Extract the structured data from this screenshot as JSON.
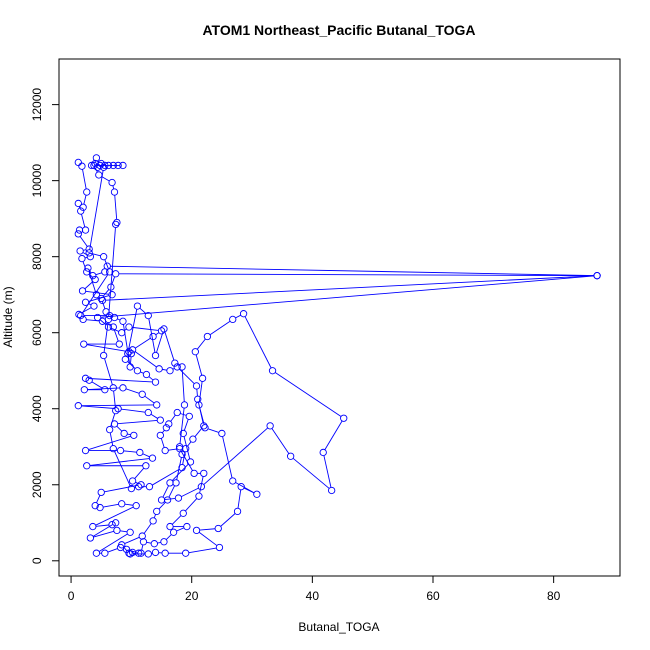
{
  "chart_data": {
    "type": "line",
    "title": "ATOM1 Northeast_Pacific Butanal_TOGA",
    "xlabel": "Butanal_TOGA",
    "ylabel": "Altitude (m)",
    "xlim": [
      -2,
      91
    ],
    "ylim": [
      -400,
      13200
    ],
    "xticks": [
      0,
      20,
      40,
      60,
      80
    ],
    "yticks": [
      0,
      2000,
      4000,
      6000,
      8000,
      10000,
      12000
    ],
    "grid": false,
    "line_color": "#0000ff",
    "marker": "open-circle",
    "series": [
      {
        "points": [
          [
            1.2,
            10480
          ],
          [
            1.8,
            10380
          ],
          [
            2.6,
            9700
          ],
          [
            2.0,
            9300
          ],
          [
            1.2,
            9400
          ],
          [
            1.6,
            9200
          ],
          [
            2.4,
            8700
          ],
          [
            1.4,
            8700
          ],
          [
            1.2,
            8600
          ],
          [
            3.0,
            8200
          ],
          [
            1.5,
            8150
          ],
          [
            3.2,
            8000
          ],
          [
            1.8,
            7950
          ],
          [
            2.6,
            7600
          ],
          [
            4.0,
            7400
          ],
          [
            1.9,
            7100
          ],
          [
            6.8,
            7000
          ],
          [
            2.4,
            6800
          ],
          [
            3.8,
            6700
          ],
          [
            1.3,
            6480
          ],
          [
            2.0,
            6350
          ],
          [
            5.2,
            6300
          ],
          [
            7.0,
            6150
          ],
          [
            8.0,
            5700
          ],
          [
            2.1,
            5700
          ],
          [
            9.6,
            5500
          ],
          [
            9.0,
            5300
          ],
          [
            11.0,
            5000
          ],
          [
            12.5,
            4900
          ],
          [
            14.0,
            4700
          ],
          [
            2.4,
            4800
          ],
          [
            3.0,
            4750
          ],
          [
            5.6,
            4500
          ],
          [
            2.2,
            4500
          ],
          [
            8.6,
            4550
          ],
          [
            11.8,
            4380
          ],
          [
            14.2,
            4100
          ],
          [
            1.2,
            4080
          ],
          [
            7.8,
            4000
          ],
          [
            12.8,
            3900
          ],
          [
            14.8,
            3700
          ],
          [
            7.2,
            3600
          ],
          [
            8.8,
            3350
          ],
          [
            10.4,
            3300
          ],
          [
            2.4,
            2900
          ],
          [
            8.2,
            2900
          ],
          [
            11.4,
            2850
          ],
          [
            13.5,
            2700
          ],
          [
            2.6,
            2500
          ],
          [
            12.4,
            2500
          ],
          [
            10.2,
            2100
          ],
          [
            11.6,
            2000
          ],
          [
            5.0,
            1800
          ],
          [
            4.0,
            1450
          ],
          [
            4.8,
            1400
          ],
          [
            8.4,
            1500
          ],
          [
            10.8,
            1450
          ],
          [
            3.6,
            900
          ],
          [
            6.8,
            950
          ],
          [
            7.4,
            1000
          ],
          [
            3.2,
            600
          ],
          [
            7.6,
            800
          ],
          [
            9.8,
            750
          ],
          [
            4.2,
            200
          ],
          [
            5.6,
            200
          ],
          [
            8.2,
            350
          ],
          [
            9.2,
            300
          ],
          [
            11.2,
            200
          ],
          [
            9.8,
            180
          ],
          [
            12.8,
            180
          ],
          [
            14.0,
            220
          ],
          [
            15.6,
            200
          ],
          [
            19.0,
            200
          ],
          [
            24.6,
            350
          ],
          [
            20.8,
            800
          ],
          [
            24.4,
            850
          ],
          [
            27.6,
            1300
          ],
          [
            28.2,
            1950
          ],
          [
            30.8,
            1750
          ],
          [
            26.8,
            2100
          ],
          [
            25.0,
            3350
          ],
          [
            22.2,
            3500
          ],
          [
            21.2,
            4100
          ],
          [
            21.8,
            4800
          ],
          [
            20.6,
            5500
          ],
          [
            22.6,
            5900
          ],
          [
            26.8,
            6350
          ],
          [
            28.6,
            6500
          ],
          [
            33.4,
            5000
          ],
          [
            45.2,
            3750
          ],
          [
            41.8,
            2850
          ],
          [
            43.2,
            1850
          ],
          [
            36.4,
            2750
          ],
          [
            33.0,
            3550
          ],
          [
            21.6,
            1950
          ],
          [
            17.8,
            1650
          ],
          [
            15.0,
            1600
          ],
          [
            16.4,
            2050
          ],
          [
            19.8,
            2600
          ],
          [
            18.6,
            3350
          ],
          [
            19.6,
            3800
          ],
          [
            17.6,
            3900
          ],
          [
            16.2,
            3600
          ],
          [
            15.8,
            3500
          ],
          [
            14.8,
            3300
          ],
          [
            15.6,
            2900
          ],
          [
            18.0,
            2950
          ],
          [
            20.4,
            2300
          ],
          [
            22.0,
            2300
          ],
          [
            21.2,
            1700
          ],
          [
            18.6,
            1250
          ],
          [
            16.4,
            900
          ],
          [
            19.2,
            900
          ],
          [
            17.0,
            750
          ],
          [
            15.4,
            500
          ],
          [
            13.8,
            450
          ],
          [
            12.0,
            500
          ],
          [
            11.6,
            200
          ],
          [
            10.2,
            220
          ],
          [
            9.6,
            200
          ],
          [
            8.4,
            420
          ],
          [
            11.8,
            650
          ],
          [
            13.6,
            1050
          ],
          [
            14.2,
            1300
          ],
          [
            16.0,
            1600
          ],
          [
            17.4,
            2050
          ],
          [
            18.4,
            2800
          ],
          [
            18.0,
            3000
          ],
          [
            18.8,
            4100
          ],
          [
            18.4,
            5100
          ],
          [
            17.2,
            5200
          ],
          [
            15.4,
            6100
          ],
          [
            14.0,
            5400
          ],
          [
            12.8,
            6450
          ],
          [
            11.0,
            6700
          ],
          [
            9.4,
            5450
          ],
          [
            10.0,
            5450
          ],
          [
            9.8,
            5100
          ],
          [
            8.6,
            6300
          ],
          [
            7.2,
            6400
          ],
          [
            5.8,
            6550
          ],
          [
            5.0,
            6900
          ],
          [
            6.6,
            7200
          ],
          [
            7.4,
            7550
          ],
          [
            87.2,
            7500
          ],
          [
            5.2,
            6850
          ],
          [
            4.2,
            7000
          ],
          [
            2.8,
            7700
          ],
          [
            3.6,
            7500
          ],
          [
            5.6,
            7600
          ],
          [
            6.0,
            7750
          ],
          [
            87.2,
            7500
          ],
          [
            4.4,
            6400
          ],
          [
            6.2,
            6150
          ],
          [
            8.4,
            6000
          ],
          [
            9.6,
            6150
          ],
          [
            15.0,
            6050
          ],
          [
            13.6,
            5900
          ],
          [
            10.2,
            5550
          ],
          [
            14.6,
            5050
          ],
          [
            16.4,
            5000
          ],
          [
            17.6,
            5100
          ],
          [
            20.8,
            4600
          ],
          [
            21.0,
            4250
          ],
          [
            22.0,
            3550
          ],
          [
            20.2,
            3200
          ],
          [
            19.0,
            2950
          ],
          [
            18.4,
            2450
          ],
          [
            13.0,
            1950
          ],
          [
            11.2,
            1950
          ],
          [
            10.0,
            1900
          ],
          [
            7.0,
            2950
          ],
          [
            6.4,
            3450
          ],
          [
            7.4,
            3950
          ],
          [
            7.0,
            4550
          ],
          [
            5.4,
            5400
          ],
          [
            6.2,
            6350
          ],
          [
            7.4,
            8850
          ],
          [
            7.6,
            8900
          ],
          [
            7.2,
            9700
          ],
          [
            6.8,
            9950
          ],
          [
            4.6,
            10150
          ],
          [
            3.8,
            10400
          ],
          [
            4.2,
            10600
          ],
          [
            4.8,
            10400
          ],
          [
            5.6,
            10400
          ],
          [
            6.2,
            10400
          ],
          [
            7.0,
            10400
          ],
          [
            7.8,
            10400
          ],
          [
            8.6,
            10400
          ],
          [
            3.4,
            10400
          ],
          [
            4.0,
            10450
          ],
          [
            5.0,
            10450
          ],
          [
            4.4,
            10350
          ],
          [
            5.4,
            10350
          ],
          [
            3.0,
            8100
          ],
          [
            5.4,
            8000
          ],
          [
            6.4,
            7600
          ],
          [
            1.6,
            6450
          ],
          [
            6.4,
            6450
          ]
        ]
      }
    ]
  }
}
